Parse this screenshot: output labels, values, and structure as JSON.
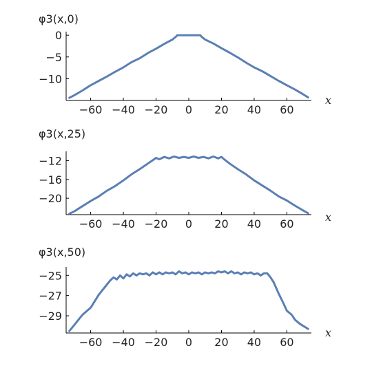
{
  "chart_data": [
    {
      "type": "line",
      "title": "",
      "ylabel": "φ3(x,0)",
      "xlabel": "x",
      "xlim": [
        -75,
        75
      ],
      "ylim": [
        -15,
        0.5
      ],
      "xticks": [
        -60,
        -40,
        -20,
        0,
        20,
        40,
        60
      ],
      "xtick_labels": [
        "−60",
        "−40",
        "−20",
        "0",
        "20",
        "40",
        "60"
      ],
      "yticks": [
        0,
        -5,
        -10
      ],
      "ytick_labels": [
        "0",
        "−5",
        "−10"
      ],
      "color": "#5b7fb4",
      "series": [
        {
          "x": [
            -73,
            -70,
            -65,
            -60,
            -55,
            -50,
            -45,
            -40,
            -35,
            -30,
            -25,
            -20,
            -15,
            -10,
            -8,
            -7,
            -5,
            0,
            5,
            7,
            8,
            10,
            15,
            20,
            25,
            30,
            35,
            40,
            45,
            50,
            55,
            60,
            65,
            70,
            73
          ],
          "y": [
            -14.4,
            -13.8,
            -12.7,
            -11.5,
            -10.5,
            -9.5,
            -8.4,
            -7.4,
            -6.2,
            -5.3,
            -4.1,
            -3.1,
            -2.0,
            -1.0,
            -0.4,
            0.0,
            0.0,
            0.0,
            0.0,
            0.0,
            -0.4,
            -1.0,
            -1.9,
            -3.0,
            -4.0,
            -5.1,
            -6.3,
            -7.4,
            -8.3,
            -9.4,
            -10.5,
            -11.5,
            -12.5,
            -13.6,
            -14.3
          ]
        }
      ]
    },
    {
      "type": "line",
      "title": "",
      "ylabel": "φ3(x,25)",
      "xlabel": "x",
      "xlim": [
        -75,
        75
      ],
      "ylim": [
        -23.5,
        -10.3
      ],
      "xticks": [
        -60,
        -40,
        -20,
        0,
        20,
        40,
        60
      ],
      "xtick_labels": [
        "−60",
        "−40",
        "−20",
        "0",
        "20",
        "40",
        "60"
      ],
      "yticks": [
        -12,
        -16,
        -20
      ],
      "ytick_labels": [
        "−12",
        "−16",
        "−20"
      ],
      "color": "#5b7fb4",
      "series": [
        {
          "x": [
            -73,
            -70,
            -65,
            -60,
            -55,
            -50,
            -45,
            -40,
            -35,
            -30,
            -25,
            -22,
            -20,
            -18,
            -15,
            -12,
            -9,
            -6,
            -3,
            0,
            3,
            6,
            9,
            12,
            15,
            18,
            20,
            22,
            25,
            30,
            35,
            40,
            45,
            50,
            55,
            60,
            65,
            70,
            73
          ],
          "y": [
            -23.3,
            -22.8,
            -21.7,
            -20.6,
            -19.6,
            -18.4,
            -17.4,
            -16.2,
            -14.9,
            -13.8,
            -12.6,
            -11.9,
            -11.4,
            -11.7,
            -11.2,
            -11.5,
            -11.1,
            -11.4,
            -11.2,
            -11.4,
            -11.1,
            -11.4,
            -11.2,
            -11.5,
            -11.1,
            -11.5,
            -11.2,
            -11.8,
            -12.6,
            -13.8,
            -14.9,
            -16.2,
            -17.3,
            -18.4,
            -19.6,
            -20.5,
            -21.6,
            -22.6,
            -23.2
          ]
        }
      ]
    },
    {
      "type": "line",
      "title": "",
      "ylabel": "φ3(x,50)",
      "xlabel": "x",
      "xlim": [
        -75,
        75
      ],
      "ylim": [
        -30.7,
        -24.3
      ],
      "xticks": [
        -60,
        -40,
        -20,
        0,
        20,
        40,
        60
      ],
      "xtick_labels": [
        "−60",
        "−40",
        "−20",
        "0",
        "20",
        "40",
        "60"
      ],
      "yticks": [
        -25,
        -27,
        -29
      ],
      "ytick_labels": [
        "−25",
        "−27",
        "−29"
      ],
      "color": "#5b7fb4",
      "series": [
        {
          "x": [
            -73,
            -70,
            -65,
            -60,
            -55,
            -50,
            -48,
            -46,
            -44,
            -42,
            -40,
            -38,
            -36,
            -34,
            -32,
            -30,
            -28,
            -26,
            -24,
            -22,
            -20,
            -18,
            -16,
            -14,
            -12,
            -10,
            -8,
            -6,
            -4,
            -2,
            0,
            2,
            4,
            6,
            8,
            10,
            12,
            14,
            16,
            18,
            20,
            22,
            24,
            26,
            28,
            30,
            32,
            34,
            36,
            38,
            40,
            42,
            44,
            46,
            48,
            50,
            52,
            55,
            58,
            60,
            63,
            65,
            68,
            70,
            73
          ],
          "y": [
            -30.5,
            -29.9,
            -28.9,
            -28.2,
            -26.9,
            -25.9,
            -25.5,
            -25.2,
            -25.4,
            -25.0,
            -25.3,
            -24.9,
            -25.1,
            -24.8,
            -25.0,
            -24.8,
            -24.9,
            -24.8,
            -25.0,
            -24.7,
            -24.9,
            -24.7,
            -24.9,
            -24.7,
            -24.8,
            -24.7,
            -24.9,
            -24.6,
            -24.8,
            -24.7,
            -24.9,
            -24.7,
            -24.8,
            -24.7,
            -24.9,
            -24.7,
            -24.8,
            -24.7,
            -24.8,
            -24.6,
            -24.7,
            -24.6,
            -24.8,
            -24.6,
            -24.8,
            -24.7,
            -24.9,
            -24.7,
            -24.8,
            -24.7,
            -24.9,
            -24.8,
            -25.0,
            -24.8,
            -24.8,
            -25.2,
            -25.7,
            -26.8,
            -27.8,
            -28.5,
            -28.9,
            -29.4,
            -29.8,
            -30.0,
            -30.3
          ]
        }
      ]
    }
  ]
}
